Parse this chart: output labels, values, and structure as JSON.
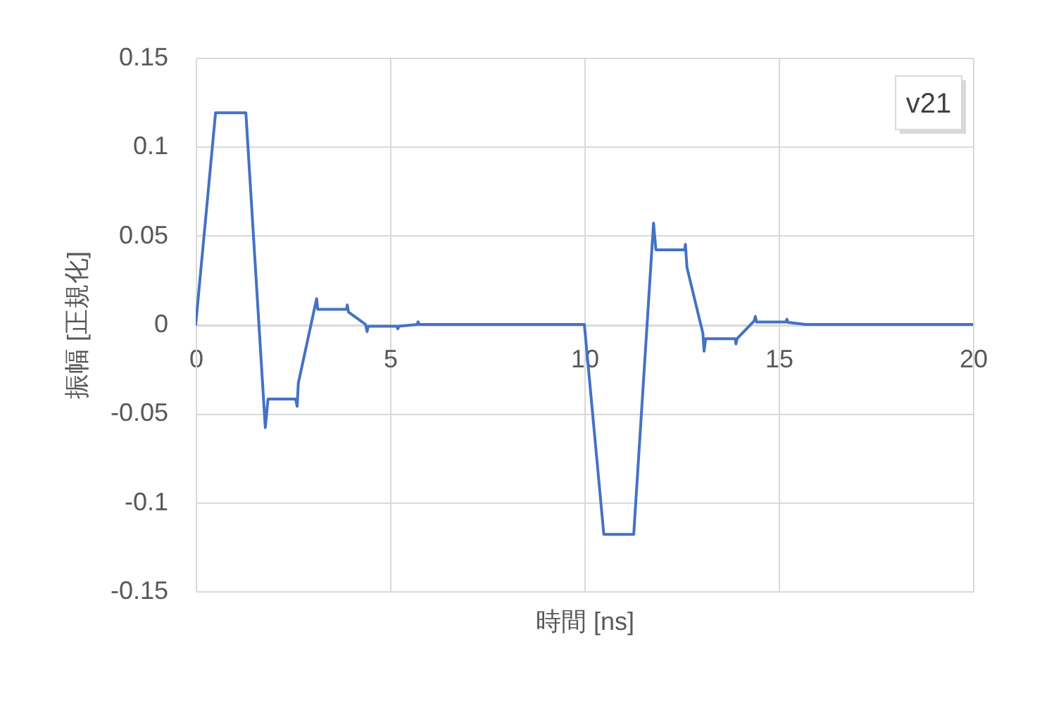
{
  "chart_data": {
    "type": "line",
    "xlabel": "時間 [ns]",
    "ylabel": "振幅 [正規化]",
    "annotations": [
      "v21"
    ],
    "x": [
      0,
      0.51,
      1.29,
      1.79,
      1.86,
      2.57,
      2.61,
      2.64,
      3.11,
      3.14,
      3.88,
      3.9,
      3.93,
      4.37,
      4.41,
      4.44,
      5.17,
      5.2,
      5.23,
      5.7,
      5.72,
      5.75,
      10.0,
      10.5,
      11.27,
      11.78,
      11.84,
      12.58,
      12.6,
      12.64,
      13.05,
      13.08,
      13.12,
      13.88,
      13.9,
      13.93,
      14.37,
      14.4,
      14.43,
      15.19,
      15.21,
      15.24,
      15.7,
      20
    ],
    "series": [
      {
        "color": "#4472c4",
        "values": [
          0,
          0.119,
          0.119,
          -0.058,
          -0.042,
          -0.042,
          -0.046,
          -0.033,
          0.0145,
          0.0085,
          0.0085,
          0.011,
          0.007,
          0,
          -0.004,
          -0.001,
          -0.001,
          -0.0024,
          -0.001,
          0,
          0.0015,
          0,
          0,
          -0.118,
          -0.118,
          0.057,
          0.042,
          0.042,
          0.045,
          0.032,
          -0.005,
          -0.015,
          -0.008,
          -0.008,
          -0.011,
          -0.008,
          0.002,
          0.0045,
          0.0014,
          0.0014,
          0.003,
          0.0012,
          0,
          0
        ]
      }
    ],
    "xlim": [
      0,
      20
    ],
    "ylim": [
      -0.15,
      0.15
    ],
    "xticks": [
      0,
      5,
      10,
      15,
      20
    ],
    "yticks": [
      -0.15,
      -0.1,
      -0.05,
      0,
      0.05,
      0.1,
      0.15
    ],
    "grid": true
  }
}
